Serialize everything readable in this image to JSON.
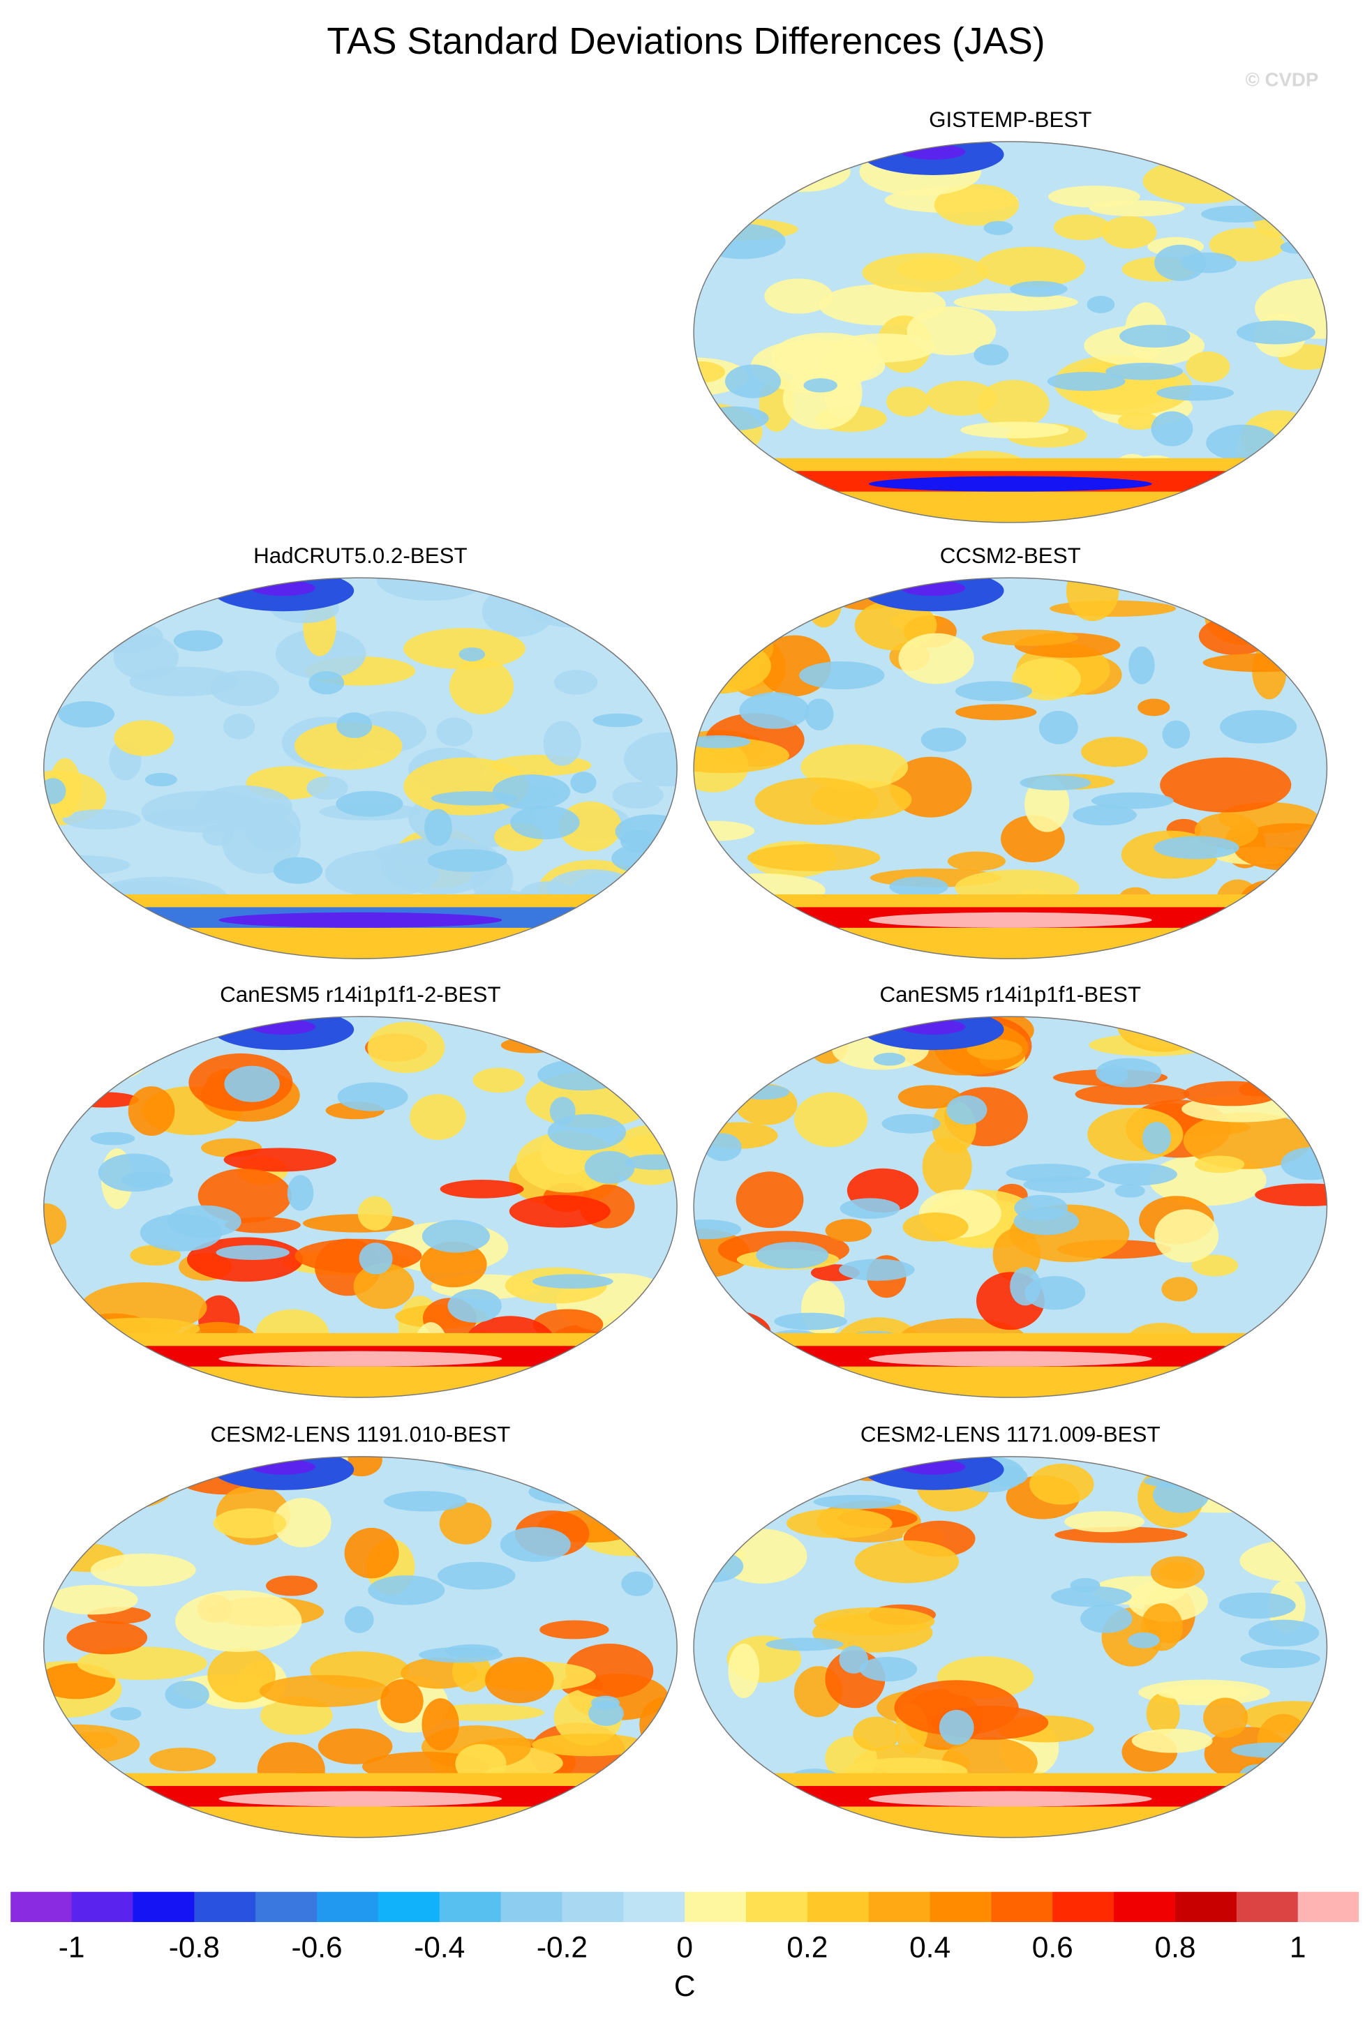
{
  "title": "TAS Standard Deviations Differences (JAS)",
  "watermark": "© CVDP",
  "panels": [
    {
      "title": "GISTEMP-BEST"
    },
    {
      "title": "HadCRUT5.0.2-BEST"
    },
    {
      "title": "CCSM2-BEST"
    },
    {
      "title": "CanESM5 r14i1p1f1-2-BEST"
    },
    {
      "title": "CanESM5 r14i1p1f1-BEST"
    },
    {
      "title": "CESM2-LENS 1191.010-BEST"
    },
    {
      "title": "CESM2-LENS 1171.009-BEST"
    }
  ],
  "colorbar": {
    "colors": [
      "#8a2be2",
      "#5a23ee",
      "#1414f5",
      "#2a52e0",
      "#3a78e0",
      "#2299f0",
      "#12b2fa",
      "#58c0f0",
      "#8ccdf0",
      "#a8d8f2",
      "#bde3f5",
      "#fff7a0",
      "#ffe050",
      "#ffc828",
      "#ffaa14",
      "#ff8c00",
      "#ff6400",
      "#ff2a00",
      "#f00000",
      "#c80000",
      "#dc4444",
      "#ffb4b4"
    ],
    "lim": [
      -1.1,
      1.1
    ],
    "ticks": [
      -1,
      -0.8,
      -0.6,
      -0.4,
      -0.2,
      0,
      0.2,
      0.4,
      0.6,
      0.8,
      1
    ],
    "label": "C"
  }
}
